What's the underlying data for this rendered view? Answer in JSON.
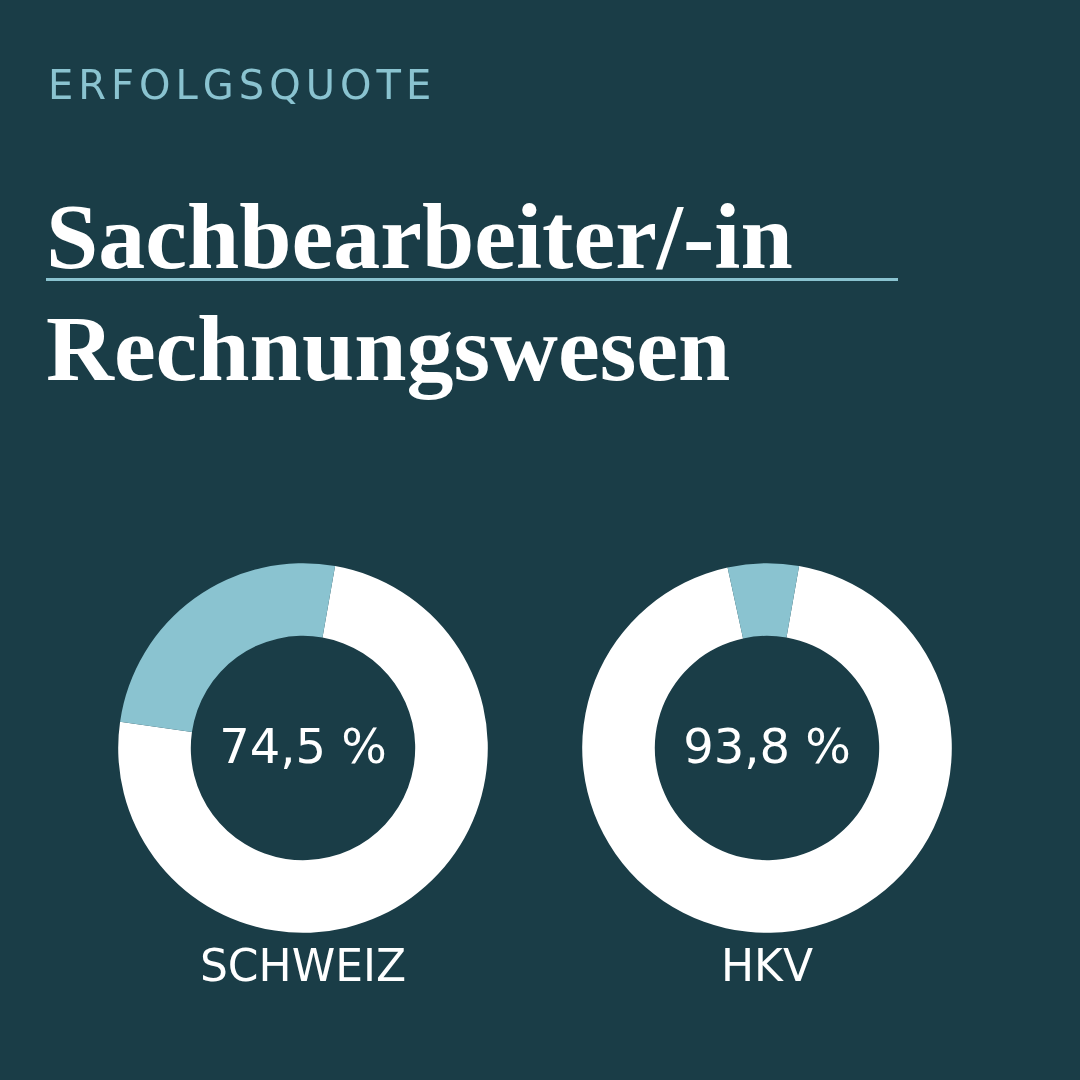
{
  "chart_data": [
    {
      "type": "donut",
      "subtitle": "ERFOLGSQUOTE",
      "title": "Sachbearbeiter/-in Rechnungswesen",
      "xlabel": "SCHWEIZ",
      "categories": [
        null,
        null
      ],
      "values": [
        74.5,
        25.5
      ],
      "colors": [
        "#ffffff",
        "#8ac3d0"
      ],
      "annotations": [
        "74,5 %"
      ]
    },
    {
      "type": "donut",
      "xlabel": "HKV",
      "categories": [
        null,
        null
      ],
      "values": [
        93.8,
        6.2
      ],
      "colors": [
        "#ffffff",
        "#8ac3d0"
      ],
      "annotations": [
        "93,8 %"
      ]
    }
  ]
}
